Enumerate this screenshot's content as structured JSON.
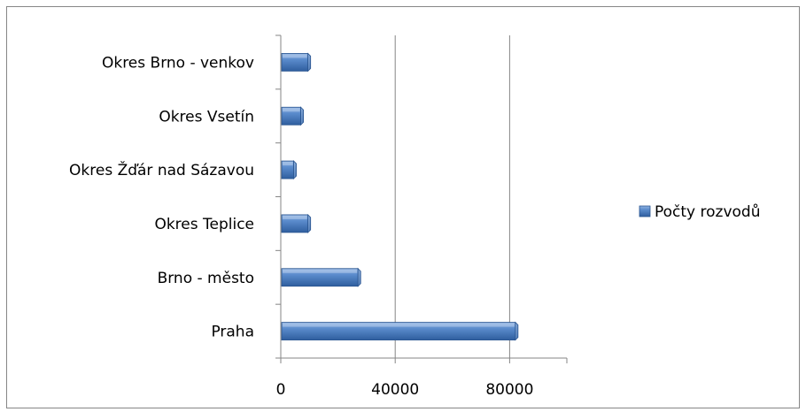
{
  "chart_data": {
    "type": "bar",
    "orientation": "horizontal",
    "categories": [
      "Praha",
      "Brno - město",
      "Okres Teplice",
      "Okres Žďár nad Sázavou",
      "Okres Vsetín",
      "Okres Brno - venkov"
    ],
    "series": [
      {
        "name": "Počty rozvodů",
        "values": [
          82000,
          27000,
          9500,
          4500,
          7000,
          9500
        ],
        "color": "#4a7ec0"
      }
    ],
    "xlim": [
      0,
      100000
    ],
    "xticks": [
      0,
      40000,
      80000
    ],
    "xtick_labels": [
      "0",
      "40000",
      "80000"
    ],
    "gridlines": [
      40000,
      80000
    ],
    "grid": true,
    "legend_position": "right",
    "title": "",
    "xlabel": "",
    "ylabel": ""
  }
}
